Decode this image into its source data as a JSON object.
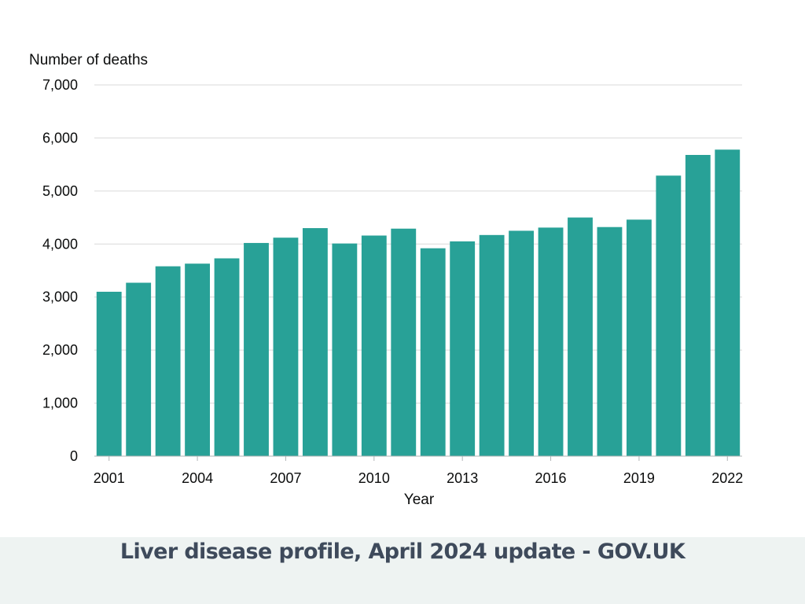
{
  "chart_data": {
    "type": "bar",
    "title": "",
    "ylabel": "Number of deaths",
    "xlabel": "Year",
    "ylim": [
      0,
      7000
    ],
    "y_ticks": [
      0,
      1000,
      2000,
      3000,
      4000,
      5000,
      6000,
      7000
    ],
    "y_tick_labels": [
      "0",
      "1,000",
      "2,000",
      "3,000",
      "4,000",
      "5,000",
      "6,000",
      "7,000"
    ],
    "x_tick_labels": [
      "2001",
      "2004",
      "2007",
      "2010",
      "2013",
      "2016",
      "2019",
      "2022"
    ],
    "categories": [
      "2001",
      "2002",
      "2003",
      "2004",
      "2005",
      "2006",
      "2007",
      "2008",
      "2009",
      "2010",
      "2011",
      "2012",
      "2013",
      "2014",
      "2015",
      "2016",
      "2017",
      "2018",
      "2019",
      "2020",
      "2021",
      "2022"
    ],
    "values": [
      3100,
      3270,
      3580,
      3630,
      3730,
      4020,
      4120,
      4300,
      4010,
      4160,
      4290,
      3920,
      4050,
      4170,
      4250,
      4310,
      4500,
      4320,
      4460,
      5290,
      5680,
      5780
    ],
    "bar_color": "#28a197",
    "grid": true
  },
  "caption": {
    "text": "Liver disease profile, April 2024 update - GOV.UK"
  }
}
